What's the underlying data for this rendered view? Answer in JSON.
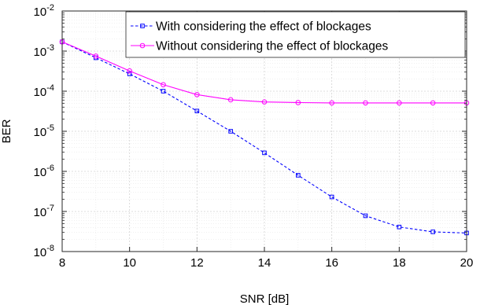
{
  "chart_data": {
    "type": "line",
    "title": "",
    "xlabel": "SNR [dB]",
    "ylabel": "BER",
    "xlim": [
      8,
      20
    ],
    "ylim": [
      1e-08,
      0.01
    ],
    "yscale": "log",
    "grid": true,
    "minor_grid": true,
    "legend_position": "top-right",
    "x_ticks": [
      {
        "value": 8,
        "label": "8"
      },
      {
        "value": 10,
        "label": "10"
      },
      {
        "value": 12,
        "label": "12"
      },
      {
        "value": 14,
        "label": "14"
      },
      {
        "value": 16,
        "label": "16"
      },
      {
        "value": 18,
        "label": "18"
      },
      {
        "value": 20,
        "label": "20"
      }
    ],
    "y_ticks": [
      {
        "exp": -8,
        "base": "10",
        "sup": "-8"
      },
      {
        "exp": -7,
        "base": "10",
        "sup": "-7"
      },
      {
        "exp": -6,
        "base": "10",
        "sup": "-6"
      },
      {
        "exp": -5,
        "base": "10",
        "sup": "-5"
      },
      {
        "exp": -4,
        "base": "10",
        "sup": "-4"
      },
      {
        "exp": -3,
        "base": "10",
        "sup": "-3"
      },
      {
        "exp": -2,
        "base": "10",
        "sup": "-2"
      }
    ],
    "series": [
      {
        "name": "With considering the effect of blockages",
        "color": "#0000ff",
        "line_style": "dashed",
        "marker": "square",
        "x": [
          8,
          9,
          10,
          11,
          12,
          13,
          14,
          15,
          16,
          17,
          18,
          19,
          20
        ],
        "y": [
          0.0017,
          0.00068,
          0.00027,
          0.0001,
          3.2e-05,
          1e-05,
          2.9e-06,
          8e-07,
          2.3e-07,
          7.8e-08,
          4.1e-08,
          3.1e-08,
          2.9e-08
        ]
      },
      {
        "name": "Without considering the effect of blockages",
        "color": "#ff00ff",
        "line_style": "solid",
        "marker": "circle",
        "x": [
          8,
          9,
          10,
          11,
          12,
          13,
          14,
          15,
          16,
          17,
          18,
          19,
          20
        ],
        "y": [
          0.0017,
          0.00075,
          0.00032,
          0.000145,
          8.2e-05,
          6.1e-05,
          5.4e-05,
          5.2e-05,
          5.1e-05,
          5.1e-05,
          5.1e-05,
          5.1e-05,
          5.1e-05
        ]
      }
    ]
  }
}
